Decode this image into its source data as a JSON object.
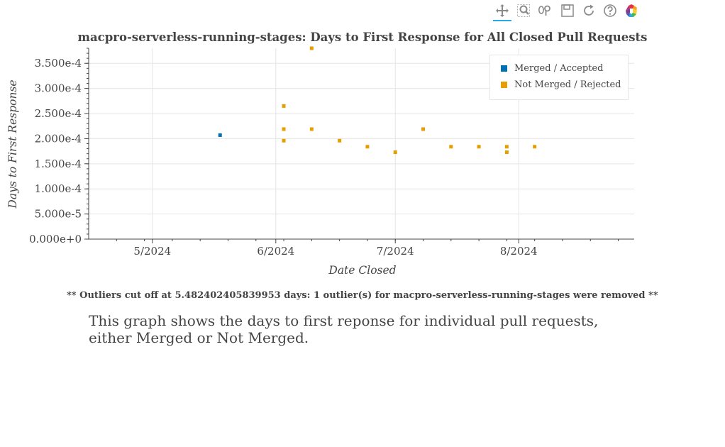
{
  "toolbar": {
    "tools": [
      {
        "name": "pan-icon",
        "active": true
      },
      {
        "name": "box-zoom-icon",
        "active": false
      },
      {
        "name": "wheel-zoom-icon",
        "active": false
      },
      {
        "name": "save-icon",
        "active": false
      },
      {
        "name": "reset-icon",
        "active": false
      },
      {
        "name": "help-icon",
        "active": false
      },
      {
        "name": "bokeh-logo-icon",
        "active": false
      }
    ]
  },
  "chart_data": {
    "type": "scatter",
    "title": "macpro-serverless-running-stages: Days to First Response for All Closed Pull Requests",
    "xlabel": "Date Closed",
    "ylabel": "Days to First Response",
    "x_tick_labels": [
      "5/2024",
      "6/2024",
      "7/2024",
      "8/2024"
    ],
    "x_tick_dates": [
      "2024-05-01",
      "2024-06-01",
      "2024-07-01",
      "2024-08-01"
    ],
    "xlim": [
      "2024-04-15",
      "2024-08-30"
    ],
    "ylim": [
      0,
      0.00038
    ],
    "y_ticks": [
      0,
      5e-05,
      0.0001,
      0.00015,
      0.0002,
      0.00025,
      0.0003,
      0.00035
    ],
    "y_tick_labels": [
      "0.000e+0",
      "5.000e-5",
      "1.000e-4",
      "1.500e-4",
      "2.000e-4",
      "2.500e-4",
      "3.000e-4",
      "3.500e-4"
    ],
    "grid": true,
    "legend_position": "top-right",
    "series": [
      {
        "name": "Merged / Accepted",
        "color": "#0072b2",
        "points": [
          {
            "x": "2024-05-18",
            "y": 0.000207
          }
        ]
      },
      {
        "name": "Not Merged / Rejected",
        "color": "#e69f00",
        "points": [
          {
            "x": "2024-06-03",
            "y": 0.000265
          },
          {
            "x": "2024-06-03",
            "y": 0.000219
          },
          {
            "x": "2024-06-03",
            "y": 0.000196
          },
          {
            "x": "2024-06-10",
            "y": 0.00038
          },
          {
            "x": "2024-06-10",
            "y": 0.000219
          },
          {
            "x": "2024-06-17",
            "y": 0.000196
          },
          {
            "x": "2024-06-24",
            "y": 0.000184
          },
          {
            "x": "2024-07-01",
            "y": 0.000173
          },
          {
            "x": "2024-07-08",
            "y": 0.000219
          },
          {
            "x": "2024-07-15",
            "y": 0.000184
          },
          {
            "x": "2024-07-22",
            "y": 0.000184
          },
          {
            "x": "2024-07-29",
            "y": 0.000184
          },
          {
            "x": "2024-07-29",
            "y": 0.000173
          },
          {
            "x": "2024-08-05",
            "y": 0.000184
          }
        ]
      }
    ]
  },
  "footnote": "** Outliers cut off at 5.482402405839953 days: 1 outlier(s) for macpro-serverless-running-stages were removed **",
  "caption": "This graph shows the days to first reponse for individual pull requests, either Merged or Not Merged."
}
